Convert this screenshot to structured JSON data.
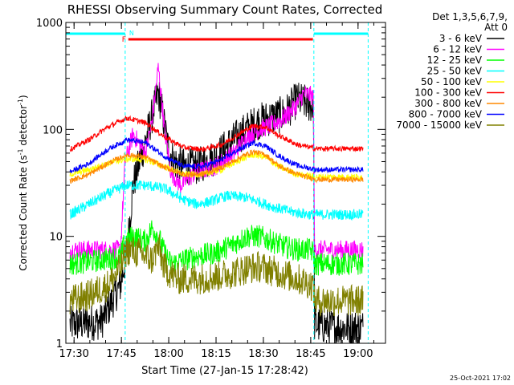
{
  "chart_data": {
    "type": "line",
    "title": "RHESSI Observing Summary Count Rates, Corrected",
    "xlabel": "Start Time (27-Jan-15 17:28:42)",
    "ylabel_main": "Corrected Count Rate (s",
    "ylabel_sup1": "-1",
    "ylabel_mid": " detector",
    "ylabel_sup2": "-1",
    "ylabel_end": ")",
    "y_scale": "log",
    "ylim": [
      1,
      1000
    ],
    "xlim_minutes": [
      -1.3,
      100
    ],
    "x_ticks": [
      "17:30",
      "17:45",
      "18:00",
      "18:15",
      "18:30",
      "18:45",
      "19:00"
    ],
    "y_ticks": [
      "1",
      "10",
      "100",
      "1000"
    ],
    "legend_header": [
      "Det 1,3,5,6,7,9,",
      "Att 0"
    ],
    "footer_date": "25-Oct-2021 17:02",
    "markers": {
      "F": "F",
      "N": "N"
    },
    "night_boundaries_minutes": [
      17.5,
      77.3,
      94.5
    ],
    "flare_flag_minutes": [
      18.5,
      77.0
    ],
    "series": [
      {
        "name": "3 - 6 keV",
        "color": "#000000",
        "x": [
          0,
          10,
          16,
          17,
          18,
          20,
          24,
          28,
          29,
          31,
          33,
          36,
          40,
          46,
          52,
          56,
          60,
          64,
          68,
          72,
          74,
          76,
          77.2,
          77.5,
          85,
          93
        ],
        "y": [
          1.5,
          1.6,
          3.5,
          5,
          7,
          30,
          80,
          220,
          160,
          70,
          50,
          45,
          45,
          55,
          80,
          100,
          120,
          130,
          140,
          190,
          180,
          170,
          160,
          1.5,
          1.4,
          1.4
        ]
      },
      {
        "name": "6 - 12 keV",
        "color": "#ff00ff",
        "x": [
          0,
          10,
          16,
          17.5,
          20,
          24,
          26,
          28,
          30,
          32,
          35,
          40,
          46,
          52,
          56,
          60,
          64,
          68,
          72,
          74,
          76,
          77.2,
          77.5,
          85,
          93
        ],
        "y": [
          7.5,
          7.5,
          7.5,
          50,
          90,
          60,
          120,
          380,
          100,
          40,
          30,
          40,
          45,
          60,
          85,
          100,
          110,
          130,
          170,
          215,
          210,
          200,
          7.5,
          7.5,
          7.5
        ]
      },
      {
        "name": "12 - 25 keV",
        "color": "#00ff00",
        "x": [
          0,
          10,
          16,
          17.5,
          20,
          24,
          26,
          28,
          30,
          32,
          36,
          40,
          46,
          52,
          56,
          60,
          64,
          68,
          72,
          76,
          77.2,
          77.5,
          85,
          93
        ],
        "y": [
          5.5,
          6,
          6.5,
          9,
          10,
          9,
          12,
          10,
          7,
          5.5,
          6,
          6.5,
          7,
          8.5,
          10,
          10,
          9,
          8,
          7.5,
          7.5,
          7,
          5.5,
          5.5,
          5.5
        ]
      },
      {
        "name": "25 - 50 keV",
        "color": "#00ffff",
        "x": [
          0,
          6,
          12,
          18,
          24,
          30,
          36,
          40,
          44,
          50,
          56,
          60,
          64,
          70,
          76,
          80,
          86,
          93
        ],
        "y": [
          16,
          20,
          25,
          30,
          30,
          28,
          22,
          20,
          21,
          24,
          23,
          21,
          19,
          17,
          16,
          16,
          16,
          16
        ]
      },
      {
        "name": "50 - 100 keV",
        "color": "#ffff00",
        "x": [
          0,
          6,
          12,
          18,
          24,
          30,
          36,
          42,
          48,
          54,
          58,
          62,
          66,
          72,
          78,
          84,
          93
        ],
        "y": [
          38,
          42,
          48,
          53,
          52,
          45,
          38,
          38,
          42,
          52,
          58,
          55,
          45,
          38,
          36,
          36,
          36
        ]
      },
      {
        "name": "100 - 300 keV",
        "color": "#ff0000",
        "x": [
          0,
          6,
          12,
          18,
          24,
          30,
          36,
          42,
          48,
          54,
          58,
          62,
          66,
          72,
          78,
          84,
          93
        ],
        "y": [
          65,
          80,
          105,
          128,
          115,
          85,
          68,
          65,
          72,
          92,
          108,
          105,
          88,
          72,
          66,
          66,
          66
        ]
      },
      {
        "name": "300 - 800 keV",
        "color": "#ff8800",
        "x": [
          0,
          6,
          12,
          18,
          24,
          30,
          36,
          42,
          48,
          54,
          58,
          62,
          66,
          72,
          78,
          84,
          93
        ],
        "y": [
          33,
          38,
          48,
          58,
          55,
          44,
          38,
          38,
          44,
          55,
          62,
          58,
          46,
          38,
          34,
          34,
          34
        ]
      },
      {
        "name": "800 - 7000 keV",
        "color": "#0000ff",
        "x": [
          0,
          6,
          12,
          18,
          24,
          30,
          36,
          42,
          48,
          54,
          58,
          62,
          66,
          72,
          78,
          84,
          93
        ],
        "y": [
          40,
          48,
          65,
          80,
          75,
          56,
          45,
          45,
          52,
          66,
          75,
          70,
          57,
          46,
          42,
          42,
          42
        ]
      },
      {
        "name": "7000 - 15000 keV",
        "color": "#808000",
        "x": [
          0,
          6,
          12,
          16,
          18,
          22,
          26,
          28,
          30,
          34,
          40,
          46,
          52,
          56,
          60,
          64,
          68,
          72,
          76,
          77.2,
          77.5,
          85,
          93
        ],
        "y": [
          2.5,
          2.8,
          3.5,
          5,
          7.5,
          7,
          6,
          8,
          5,
          4,
          4,
          4.2,
          4.6,
          5,
          5.2,
          4.8,
          4.4,
          4,
          3.6,
          3.4,
          2.5,
          2.5,
          2.5
        ]
      }
    ]
  }
}
